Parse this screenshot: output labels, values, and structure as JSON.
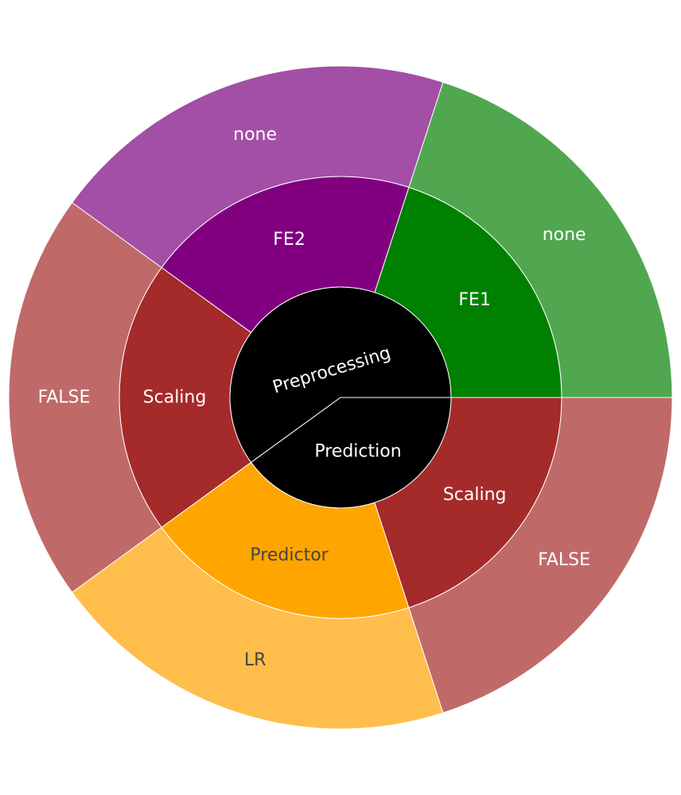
{
  "chart_data": {
    "type": "sunburst",
    "title": "",
    "nodes": [
      {
        "id": "pre",
        "label": "Preprocessing",
        "parent": "",
        "value": 3,
        "color": "#000000",
        "text_color": "#ffffff",
        "ring": 0,
        "start_deg": 0,
        "end_deg": 216,
        "label_rotation_deg": -17
      },
      {
        "id": "pred",
        "label": "Prediction",
        "parent": "",
        "value": 2,
        "color": "#000000",
        "text_color": "#ffffff",
        "ring": 0,
        "start_deg": 216,
        "end_deg": 360,
        "label_rotation_deg": 0
      },
      {
        "id": "fe1",
        "label": "FE1",
        "parent": "Preprocessing",
        "value": 1,
        "color": "#008000",
        "text_color": "#ffffff",
        "ring": 1,
        "start_deg": 0,
        "end_deg": 72,
        "label_rotation_deg": 0
      },
      {
        "id": "fe2",
        "label": "FE2",
        "parent": "Preprocessing",
        "value": 1,
        "color": "#800080",
        "text_color": "#ffffff",
        "ring": 1,
        "start_deg": 72,
        "end_deg": 144,
        "label_rotation_deg": 0
      },
      {
        "id": "scal1",
        "label": "Scaling",
        "parent": "Preprocessing",
        "value": 1,
        "color": "#a52a2a",
        "text_color": "#ffffff",
        "ring": 1,
        "start_deg": 144,
        "end_deg": 216,
        "label_rotation_deg": 0
      },
      {
        "id": "predictor",
        "label": "Predictor",
        "parent": "Prediction",
        "value": 1,
        "color": "#ffa500",
        "text_color": "#444444",
        "ring": 1,
        "start_deg": 216,
        "end_deg": 288,
        "label_rotation_deg": 0
      },
      {
        "id": "scal2",
        "label": "Scaling",
        "parent": "Prediction",
        "value": 1,
        "color": "#a52a2a",
        "text_color": "#ffffff",
        "ring": 1,
        "start_deg": 288,
        "end_deg": 360,
        "label_rotation_deg": 0
      },
      {
        "id": "none1",
        "label": "none",
        "parent": "FE1",
        "value": 1,
        "color": "#50a750",
        "text_color": "#ffffff",
        "ring": 2,
        "start_deg": 0,
        "end_deg": 72,
        "label_rotation_deg": 0
      },
      {
        "id": "none2",
        "label": "none",
        "parent": "FE2",
        "value": 1,
        "color": "#a24fa5",
        "text_color": "#ffffff",
        "ring": 2,
        "start_deg": 72,
        "end_deg": 144,
        "label_rotation_deg": 0
      },
      {
        "id": "false1",
        "label": "FALSE",
        "parent": "Scaling",
        "value": 1,
        "color": "#bf6a69",
        "text_color": "#ffffff",
        "ring": 2,
        "start_deg": 144,
        "end_deg": 216,
        "label_rotation_deg": 0
      },
      {
        "id": "lr",
        "label": "LR",
        "parent": "Predictor",
        "value": 1,
        "color": "#ffbe4c",
        "text_color": "#444444",
        "ring": 2,
        "start_deg": 216,
        "end_deg": 288,
        "label_rotation_deg": 0
      },
      {
        "id": "false2",
        "label": "FALSE",
        "parent": "Scaling",
        "value": 1,
        "color": "#bf6a69",
        "text_color": "#ffffff",
        "ring": 2,
        "start_deg": 288,
        "end_deg": 360,
        "label_rotation_deg": 0
      }
    ]
  }
}
